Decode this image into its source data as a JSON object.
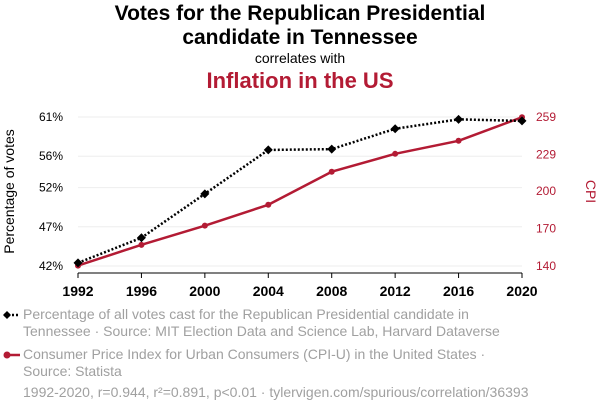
{
  "header": {
    "title_line1": "Votes for the Republican Presidential",
    "title_line2": "candidate in Tennessee",
    "correlates": "correlates with",
    "subtitle": "Inflation in the US"
  },
  "legend": {
    "series1_line1": "Percentage of all votes cast for the Republican Presidential candidate in",
    "series1_line2": "Tennessee · Source: MIT Election Data and Science Lab, Harvard Dataverse",
    "series2_line1": "Consumer Price Index for Urban Consumers (CPI-U) in the United States ·",
    "series2_line2": "Source: Statista"
  },
  "footer": "1992-2020, r=0.944, r²=0.891, p<0.01 · tylervigen.com/spurious/correlation/36393",
  "colors": {
    "series1": "#000000",
    "series2": "#b31b34"
  },
  "chart_data": {
    "type": "line",
    "x": [
      1992,
      1996,
      2000,
      2004,
      2008,
      2012,
      2016,
      2020
    ],
    "xlim": [
      1992,
      2020
    ],
    "x_ticks": [
      "1992",
      "1996",
      "2000",
      "2004",
      "2008",
      "2012",
      "2016",
      "2020"
    ],
    "ylabel_left": "Percentage of votes",
    "ylabel_right": "CPI",
    "ylim_left": [
      42,
      61
    ],
    "ylim_right": [
      140,
      259
    ],
    "y_ticks_left": [
      {
        "value": 42,
        "label": "42%"
      },
      {
        "value": 47,
        "label": "47%"
      },
      {
        "value": 52,
        "label": "52%"
      },
      {
        "value": 56,
        "label": "56%"
      },
      {
        "value": 61,
        "label": "61%"
      }
    ],
    "y_ticks_right": [
      {
        "value": 140,
        "label": "140"
      },
      {
        "value": 170,
        "label": "170"
      },
      {
        "value": 200,
        "label": "200"
      },
      {
        "value": 229,
        "label": "229"
      },
      {
        "value": 259,
        "label": "259"
      }
    ],
    "series": [
      {
        "axis": "left",
        "values": [
          42.4,
          45.6,
          51.2,
          56.8,
          56.9,
          59.5,
          60.7,
          60.5
        ]
      },
      {
        "axis": "right",
        "values": [
          140.3,
          156.9,
          172.2,
          188.9,
          215.3,
          229.6,
          240.0,
          258.8
        ]
      }
    ]
  }
}
